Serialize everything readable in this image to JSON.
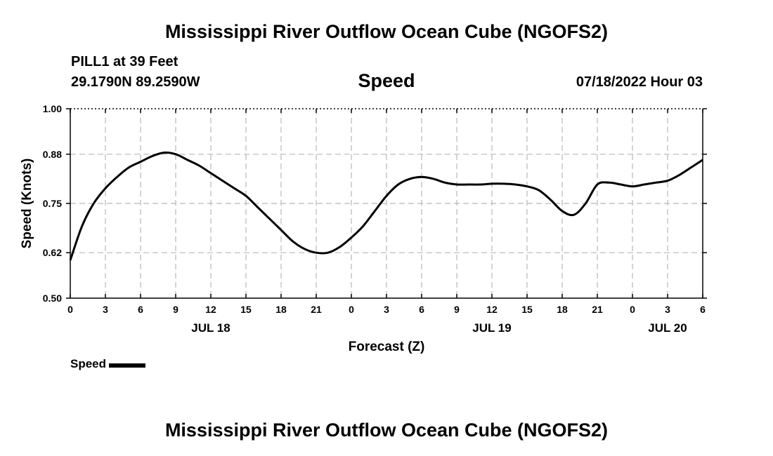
{
  "header": {
    "title": "Mississippi River Outflow Ocean Cube (NGOFS2)",
    "station": "PILL1 at 39 Feet",
    "coordinates": "29.1790N  89.2590W",
    "subtitle": "Speed",
    "datetime": "07/18/2022 Hour 03"
  },
  "footer": {
    "title": "Mississippi River Outflow Ocean Cube (NGOFS2)"
  },
  "legend": {
    "label": "Speed",
    "color": "#000000"
  },
  "chart_data": {
    "type": "line",
    "title": "Speed",
    "xlabel": "Forecast (Z)",
    "ylabel": "Speed (Knots)",
    "xlim": [
      0,
      54
    ],
    "ylim": [
      0.5,
      1.0
    ],
    "grid": true,
    "legend_position": "bottom-left",
    "x_ticks": [
      0,
      3,
      6,
      9,
      12,
      15,
      18,
      21,
      24,
      27,
      30,
      33,
      36,
      39,
      42,
      45,
      48,
      51,
      54
    ],
    "x_tick_labels": [
      "0",
      "3",
      "6",
      "9",
      "12",
      "15",
      "18",
      "21",
      "0",
      "3",
      "6",
      "9",
      "12",
      "15",
      "18",
      "21",
      "0",
      "3",
      "6"
    ],
    "date_labels": [
      {
        "x": 12,
        "label": "JUL 18"
      },
      {
        "x": 36,
        "label": "JUL 19"
      },
      {
        "x": 51,
        "label": "JUL 20"
      }
    ],
    "y_ticks": [
      0.5,
      0.62,
      0.75,
      0.88,
      1.0
    ],
    "y_tick_labels": [
      "0.50",
      "0.62",
      "0.75",
      "0.88",
      "1.00"
    ],
    "series": [
      {
        "name": "Speed",
        "color": "#000000",
        "x": [
          0,
          1,
          2,
          3,
          4,
          5,
          6,
          7,
          8,
          9,
          10,
          11,
          12,
          13,
          14,
          15,
          16,
          17,
          18,
          19,
          20,
          21,
          22,
          23,
          24,
          25,
          26,
          27,
          28,
          29,
          30,
          31,
          32,
          33,
          34,
          35,
          36,
          37,
          38,
          39,
          40,
          41,
          42,
          43,
          44,
          45,
          46,
          47,
          48,
          49,
          50,
          51,
          52,
          53,
          54
        ],
        "values": [
          0.6,
          0.69,
          0.75,
          0.79,
          0.82,
          0.845,
          0.86,
          0.875,
          0.884,
          0.88,
          0.865,
          0.85,
          0.83,
          0.81,
          0.79,
          0.77,
          0.74,
          0.71,
          0.68,
          0.65,
          0.63,
          0.62,
          0.62,
          0.635,
          0.66,
          0.69,
          0.73,
          0.77,
          0.8,
          0.815,
          0.82,
          0.815,
          0.805,
          0.8,
          0.8,
          0.8,
          0.802,
          0.802,
          0.8,
          0.795,
          0.785,
          0.76,
          0.73,
          0.72,
          0.75,
          0.8,
          0.805,
          0.8,
          0.795,
          0.8,
          0.805,
          0.81,
          0.825,
          0.845,
          0.865
        ]
      }
    ]
  }
}
